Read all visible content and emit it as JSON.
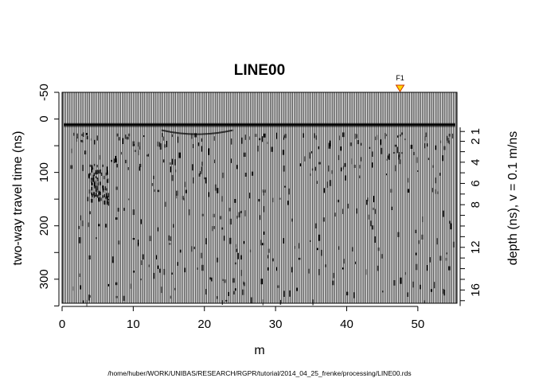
{
  "chart_data": {
    "type": "radargram",
    "title": "LINE00",
    "xlabel": "m",
    "ylabel_left": "two-way travel time (ns)",
    "ylabel_right": "depth (ns),  v = 0.1 m/ns",
    "xlim": [
      0,
      55.5
    ],
    "ylim": [
      -50,
      345
    ],
    "x_ticks": [
      0,
      10,
      20,
      30,
      40,
      50
    ],
    "y_ticks_left": [
      -50,
      0,
      100,
      200,
      300
    ],
    "depth_ticks": [
      1,
      2,
      4,
      6,
      8,
      12,
      16
    ],
    "marker": {
      "label": "F1",
      "x": 47.5,
      "color": "#ffd700"
    },
    "trace_count": 280,
    "first_arrival_ns": 12,
    "footer": "/home/huber/WORK/UNIBAS/RESEARCH/RGPR/tutorial/2014_04_25_frenke/processing/LINE00.rds"
  }
}
